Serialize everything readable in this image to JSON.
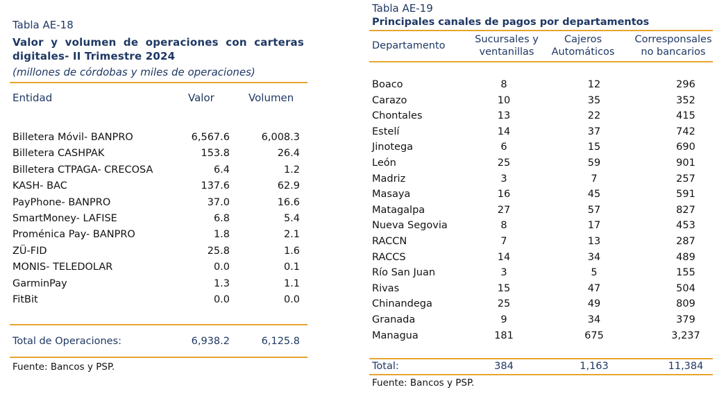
{
  "left": {
    "table_id": "Tabla AE-18",
    "title": "Valor y volumen de operaciones con carteras digitales- II Trimestre 2024",
    "subtitle": "(millones de córdobas y miles de operaciones)",
    "headers": [
      "Entidad",
      "Valor",
      "Volumen"
    ],
    "rows": [
      [
        "Billetera Móvil- BANPRO",
        "6,567.6",
        "6,008.3"
      ],
      [
        "Billetera CASHPAK",
        "153.8",
        "26.4"
      ],
      [
        "Billetera CTPAGA- CRECOSA",
        "6.4",
        "1.2"
      ],
      [
        "KASH- BAC",
        "137.6",
        "62.9"
      ],
      [
        "PayPhone- BANPRO",
        "37.0",
        "16.6"
      ],
      [
        "SmartMoney- LAFISE",
        "6.8",
        "5.4"
      ],
      [
        "Proménica Pay- BANPRO",
        "1.8",
        "2.1"
      ],
      [
        "ZÜ-FID",
        "25.8",
        "1.6"
      ],
      [
        "MONIS- TELEDOLAR",
        "0.0",
        "0.1"
      ],
      [
        "GarminPay",
        "1.3",
        "1.1"
      ],
      [
        "FitBit",
        "0.0",
        "0.0"
      ]
    ],
    "total": [
      "Total de Operaciones:",
      "6,938.2",
      "6,125.8"
    ],
    "source": "Fuente: Bancos y PSP."
  },
  "right": {
    "table_id": "Tabla AE-19",
    "title": "Principales canales de pagos por departamentos",
    "headers": {
      "departamento": "Departamento",
      "sucursales_1": "Sucursales y",
      "sucursales_2": "ventanillas",
      "cajeros_1": "Cajeros",
      "cajeros_2": "Automáticos",
      "corresp_1": "Corresponsales",
      "corresp_2": "no bancarios"
    },
    "rows": [
      [
        "Boaco",
        "8",
        "12",
        "296"
      ],
      [
        "Carazo",
        "10",
        "35",
        "352"
      ],
      [
        "Chontales",
        "13",
        "22",
        "415"
      ],
      [
        "Estelí",
        "14",
        "37",
        "742"
      ],
      [
        "Jinotega",
        "6",
        "15",
        "690"
      ],
      [
        "León",
        "25",
        "59",
        "901"
      ],
      [
        "Madriz",
        "3",
        "7",
        "257"
      ],
      [
        "Masaya",
        "16",
        "45",
        "591"
      ],
      [
        "Matagalpa",
        "27",
        "57",
        "827"
      ],
      [
        "Nueva Segovia",
        "8",
        "17",
        "453"
      ],
      [
        "RACCN",
        "7",
        "13",
        "287"
      ],
      [
        "RACCS",
        "14",
        "34",
        "489"
      ],
      [
        "Río San Juan",
        "3",
        "5",
        "155"
      ],
      [
        "Rivas",
        "15",
        "47",
        "504"
      ],
      [
        "Chinandega",
        "25",
        "49",
        "809"
      ],
      [
        "Granada",
        "9",
        "34",
        "379"
      ],
      [
        "Managua",
        "181",
        "675",
        "3,237"
      ]
    ],
    "total": [
      "Total:",
      "384",
      "1,163",
      "11,384"
    ],
    "source": "Fuente: Bancos y PSP."
  },
  "colors": {
    "navy": "#1f3864",
    "gold_rule": "#e6a52e"
  }
}
